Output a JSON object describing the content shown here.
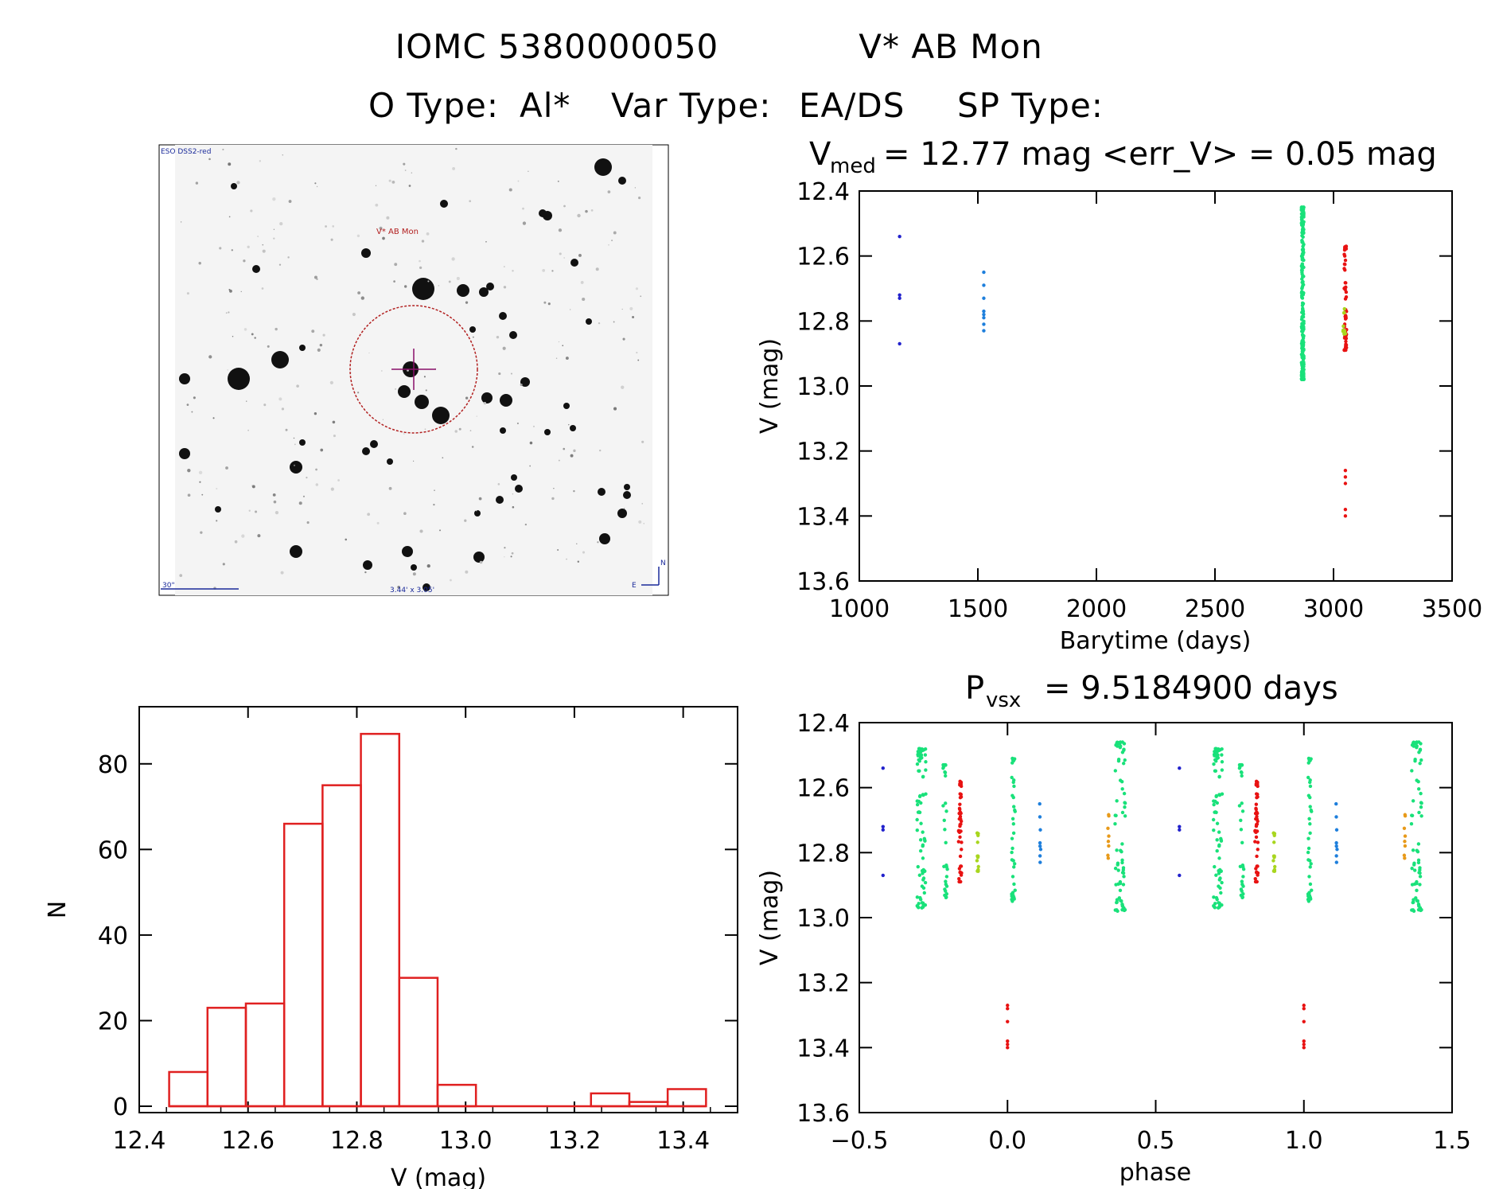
{
  "header": {
    "title_id": "IOMC 5380000050",
    "title_name": "V* AB Mon",
    "otype_label": "O Type:",
    "otype_value": "Al*",
    "vartype_label": "Var Type:",
    "vartype_value": "EA/DS",
    "sptype_label": "SP Type:",
    "sptype_value": ""
  },
  "finder": {
    "survey": "ESO DSS2-red",
    "target_label": "V* AB Mon",
    "scale_label": "30\"",
    "fov_label": "3.44' x 3.05'",
    "north": "N",
    "east": "E"
  },
  "colors": {
    "blue": "#2222cc",
    "lightblue": "#1e7fdc",
    "green": "#19e17a",
    "red": "#e81212",
    "yellow": "#a8d61e",
    "orange": "#e89a1a",
    "hist": "#e02020"
  },
  "chart_data": [
    {
      "id": "lightcurve",
      "type": "scatter",
      "title_main": "V",
      "title_sub": "med",
      "title_rest": "= 12.77 mag <err_V> = 0.05 mag",
      "xlabel": "Barytime (days)",
      "ylabel": "V (mag)",
      "xlim": [
        1000,
        3500
      ],
      "ylim": [
        12.4,
        13.6
      ],
      "y_inverted": true,
      "xticks": [
        1000,
        1500,
        2000,
        2500,
        3000,
        3500
      ],
      "yticks": [
        12.4,
        12.6,
        12.8,
        13.0,
        13.2,
        13.4,
        13.6
      ],
      "series": [
        {
          "name": "blue",
          "points": [
            [
              1170,
              12.54
            ],
            [
              1170,
              12.72
            ],
            [
              1170,
              12.73
            ],
            [
              1170,
              12.87
            ]
          ]
        },
        {
          "name": "lightblue",
          "points": [
            [
              1525,
              12.65
            ],
            [
              1525,
              12.69
            ],
            [
              1525,
              12.73
            ],
            [
              1525,
              12.77
            ],
            [
              1525,
              12.78
            ],
            [
              1525,
              12.79
            ],
            [
              1525,
              12.81
            ],
            [
              1525,
              12.83
            ]
          ]
        },
        {
          "name": "green",
          "x_center": 2870,
          "y_range": [
            12.45,
            12.98
          ],
          "count": 260
        },
        {
          "name": "red",
          "x_center": 3050,
          "y_range": [
            12.57,
            12.89
          ],
          "count": 60,
          "extra": [
            [
              3050,
              13.26
            ],
            [
              3050,
              13.28
            ],
            [
              3050,
              13.3
            ],
            [
              3050,
              13.38
            ],
            [
              3050,
              13.4
            ]
          ]
        },
        {
          "name": "yellow",
          "x_center": 3045,
          "y_range": [
            12.76,
            12.84
          ],
          "count": 10
        }
      ]
    },
    {
      "id": "phased",
      "type": "scatter",
      "title_main": "P",
      "title_sub": "vsx",
      "title_rest": "= 9.5184900 days",
      "xlabel": "phase",
      "ylabel": "V (mag)",
      "xlim": [
        -0.5,
        1.5
      ],
      "ylim": [
        12.4,
        13.6
      ],
      "y_inverted": true,
      "xticks": [
        -0.5,
        0.0,
        0.5,
        1.0,
        1.5
      ],
      "xtick_labels": [
        "−0.5",
        "0.0",
        "0.5",
        "1.0",
        "1.5"
      ],
      "yticks": [
        12.4,
        12.6,
        12.8,
        13.0,
        13.2,
        13.4,
        13.6
      ],
      "groups": [
        {
          "name": "blue",
          "phase": -0.42,
          "spread": 0.0,
          "ys": [
            12.54,
            12.72,
            12.73,
            12.87
          ]
        },
        {
          "name": "lightblue",
          "phase": 0.11,
          "spread": 0.004,
          "ys": [
            12.65,
            12.69,
            12.73,
            12.77,
            12.78,
            12.79,
            12.81,
            12.83
          ]
        },
        {
          "name": "green",
          "phase": -0.29,
          "spread": 0.03,
          "y_range": [
            12.48,
            12.97
          ],
          "count": 80
        },
        {
          "name": "green",
          "phase": -0.21,
          "spread": 0.015,
          "y_range": [
            12.53,
            12.94
          ],
          "count": 30
        },
        {
          "name": "green",
          "phase": 0.02,
          "spread": 0.012,
          "y_range": [
            12.51,
            12.95
          ],
          "count": 40
        },
        {
          "name": "green",
          "phase": 0.38,
          "spread": 0.035,
          "y_range": [
            12.46,
            12.98
          ],
          "count": 70
        },
        {
          "name": "red",
          "phase": -0.16,
          "spread": 0.01,
          "y_range": [
            12.58,
            12.89
          ],
          "count": 45
        },
        {
          "name": "red",
          "phase": 0.0,
          "spread": 0.0,
          "ys": [
            13.27,
            13.28,
            13.32,
            13.38,
            13.39,
            13.4
          ]
        },
        {
          "name": "yellow",
          "phase": -0.1,
          "spread": 0.006,
          "y_range": [
            12.74,
            12.86
          ],
          "count": 14
        },
        {
          "name": "orange",
          "phase": 0.34,
          "spread": 0.004,
          "y_range": [
            12.68,
            12.82
          ],
          "count": 8
        }
      ]
    },
    {
      "id": "histogram",
      "type": "bar",
      "xlabel": "V (mag)",
      "ylabel": "N",
      "xlim": [
        12.4,
        13.5
      ],
      "ylim": [
        0,
        90
      ],
      "xticks": [
        12.4,
        12.6,
        12.8,
        13.0,
        13.2,
        13.4
      ],
      "yticks": [
        0,
        20,
        40,
        60,
        80
      ],
      "bin_width": 0.0705,
      "bin_lefts": [
        12.455,
        12.5255,
        12.596,
        12.6665,
        12.737,
        12.8075,
        12.878,
        12.9485,
        13.019,
        13.0895,
        13.16,
        13.2305,
        13.301,
        13.3715
      ],
      "values": [
        8,
        23,
        24,
        66,
        75,
        87,
        30,
        5,
        0,
        0,
        0,
        3,
        1,
        4
      ]
    }
  ]
}
